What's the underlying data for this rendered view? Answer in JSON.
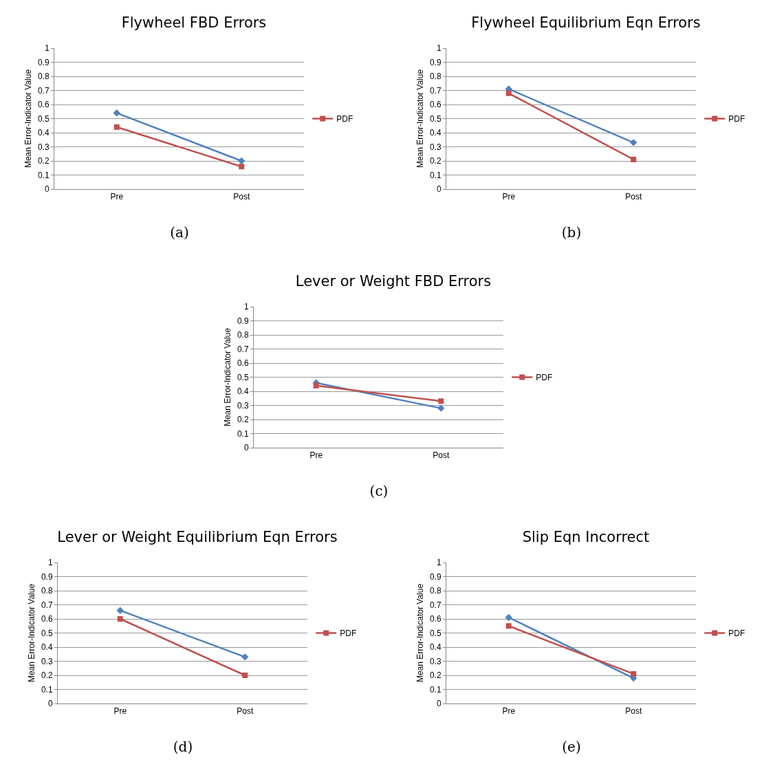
{
  "chart_data": [
    {
      "type": "line",
      "title": "Flywheel FBD Errors",
      "ylabel": "Mean Error-Indicator Value",
      "categories": [
        "Pre",
        "Post"
      ],
      "ylim": [
        0,
        1
      ],
      "yticks": [
        0,
        0.1,
        0.2,
        0.3,
        0.4,
        0.5,
        0.6,
        0.7,
        0.8,
        0.9,
        1
      ],
      "grid": "y",
      "legend": "right",
      "annotations": [
        "(a)"
      ],
      "series": [
        {
          "color": "#4f81bd",
          "marker": "diamond",
          "values": [
            0.54,
            0.2
          ]
        },
        {
          "name": "PDF",
          "color": "#c0504d",
          "marker": "square",
          "values": [
            0.44,
            0.16
          ]
        }
      ]
    },
    {
      "type": "line",
      "title": "Flywheel Equilibrium Eqn Errors",
      "ylabel": "Mean Error-Indicator Value",
      "categories": [
        "Pre",
        "Post"
      ],
      "ylim": [
        0,
        1
      ],
      "yticks": [
        0,
        0.1,
        0.2,
        0.3,
        0.4,
        0.5,
        0.6,
        0.7,
        0.8,
        0.9,
        1
      ],
      "grid": "y",
      "legend": "right",
      "annotations": [
        "(b)"
      ],
      "series": [
        {
          "color": "#4f81bd",
          "marker": "diamond",
          "values": [
            0.71,
            0.33
          ]
        },
        {
          "name": "PDF",
          "color": "#c0504d",
          "marker": "square",
          "values": [
            0.68,
            0.21
          ]
        }
      ]
    },
    {
      "type": "line",
      "title": "Lever or Weight FBD Errors",
      "ylabel": "Mean Error-Indicator Value",
      "categories": [
        "Pre",
        "Post"
      ],
      "ylim": [
        0,
        1
      ],
      "yticks": [
        0,
        0.1,
        0.2,
        0.3,
        0.4,
        0.5,
        0.6,
        0.7,
        0.8,
        0.9,
        1
      ],
      "grid": "y",
      "legend": "right",
      "annotations": [
        "(c)"
      ],
      "series": [
        {
          "color": "#4f81bd",
          "marker": "diamond",
          "values": [
            0.46,
            0.28
          ]
        },
        {
          "name": "PDF",
          "color": "#c0504d",
          "marker": "square",
          "values": [
            0.44,
            0.33
          ]
        }
      ]
    },
    {
      "type": "line",
      "title": "Lever or Weight Equilibrium Eqn Errors",
      "ylabel": "Mean Error-Indicator Value",
      "categories": [
        "Pre",
        "Post"
      ],
      "ylim": [
        0,
        1
      ],
      "yticks": [
        0,
        0.1,
        0.2,
        0.3,
        0.4,
        0.5,
        0.6,
        0.7,
        0.8,
        0.9,
        1
      ],
      "grid": "y",
      "legend": "right",
      "annotations": [
        "(d)"
      ],
      "series": [
        {
          "color": "#4f81bd",
          "marker": "diamond",
          "values": [
            0.66,
            0.33
          ]
        },
        {
          "name": "PDF",
          "color": "#c0504d",
          "marker": "square",
          "values": [
            0.6,
            0.2
          ]
        }
      ]
    },
    {
      "type": "line",
      "title": "Slip Eqn Incorrect",
      "ylabel": "Mean Error-Indicator Value",
      "categories": [
        "Pre",
        "Post"
      ],
      "ylim": [
        0,
        1
      ],
      "yticks": [
        0,
        0.1,
        0.2,
        0.3,
        0.4,
        0.5,
        0.6,
        0.7,
        0.8,
        0.9,
        1
      ],
      "grid": "y",
      "legend": "right",
      "annotations": [
        "(e)"
      ],
      "series": [
        {
          "color": "#4f81bd",
          "marker": "diamond",
          "values": [
            0.61,
            0.18
          ]
        },
        {
          "name": "PDF",
          "color": "#c0504d",
          "marker": "square",
          "values": [
            0.55,
            0.21
          ]
        }
      ]
    }
  ]
}
